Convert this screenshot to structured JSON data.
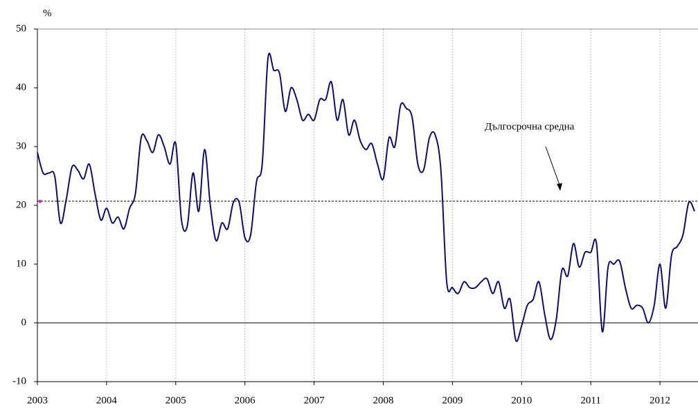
{
  "chart_data": {
    "type": "line",
    "y_unit_label": "%",
    "annotation": "Дългосрочна средна",
    "long_term_average": 20.7,
    "xlim": [
      2003,
      2012.55
    ],
    "xticks": [
      2003,
      2004,
      2005,
      2006,
      2007,
      2008,
      2009,
      2010,
      2011,
      2012
    ],
    "ylim": [
      -10,
      50
    ],
    "yticks": [
      -10,
      0,
      10,
      20,
      30,
      40,
      50
    ],
    "grid": true,
    "x": [
      2003,
      2003.083,
      2003.167,
      2003.25,
      2003.333,
      2003.417,
      2003.5,
      2003.583,
      2003.667,
      2003.75,
      2003.833,
      2003.917,
      2004,
      2004.083,
      2004.167,
      2004.25,
      2004.333,
      2004.417,
      2004.5,
      2004.583,
      2004.667,
      2004.75,
      2004.833,
      2004.917,
      2005,
      2005.083,
      2005.167,
      2005.25,
      2005.333,
      2005.417,
      2005.5,
      2005.583,
      2005.667,
      2005.75,
      2005.833,
      2005.917,
      2006,
      2006.083,
      2006.167,
      2006.25,
      2006.333,
      2006.417,
      2006.5,
      2006.583,
      2006.667,
      2006.75,
      2006.833,
      2006.917,
      2007,
      2007.083,
      2007.167,
      2007.25,
      2007.333,
      2007.417,
      2007.5,
      2007.583,
      2007.667,
      2007.75,
      2007.833,
      2007.917,
      2008,
      2008.083,
      2008.167,
      2008.25,
      2008.333,
      2008.417,
      2008.5,
      2008.583,
      2008.667,
      2008.75,
      2008.833,
      2008.917,
      2009,
      2009.083,
      2009.167,
      2009.25,
      2009.333,
      2009.417,
      2009.5,
      2009.583,
      2009.667,
      2009.75,
      2009.833,
      2009.917,
      2010,
      2010.083,
      2010.167,
      2010.25,
      2010.333,
      2010.417,
      2010.5,
      2010.583,
      2010.667,
      2010.75,
      2010.833,
      2010.917,
      2011,
      2011.083,
      2011.167,
      2011.25,
      2011.333,
      2011.417,
      2011.5,
      2011.583,
      2011.667,
      2011.75,
      2011.833,
      2011.917,
      2012,
      2012.083,
      2012.167,
      2012.25,
      2012.333,
      2012.417,
      2012.5
    ],
    "series": [
      {
        "color": "#0c0c6e",
        "values": [
          29,
          25.5,
          25.5,
          25,
          17,
          21,
          26.5,
          26,
          24.5,
          27,
          22,
          17.5,
          19.5,
          17,
          18,
          16,
          19.5,
          22,
          31.5,
          31,
          29,
          32,
          30,
          27,
          30.5,
          17.5,
          16.5,
          25.5,
          19,
          29.5,
          20,
          14,
          17,
          16,
          20.5,
          20.5,
          14.5,
          15,
          24,
          27,
          45,
          43,
          42.5,
          36,
          40,
          38,
          34.5,
          35.5,
          34.5,
          38,
          38,
          41,
          34.5,
          38,
          32,
          34.5,
          31,
          29.5,
          30.5,
          27,
          24.5,
          31.5,
          30,
          37,
          36.5,
          35,
          27,
          26,
          31.5,
          32,
          26,
          7,
          6,
          5,
          7,
          6,
          6,
          7,
          7.5,
          5,
          7,
          2.5,
          4,
          -3,
          -0.5,
          3,
          4,
          7,
          1.5,
          -2.8,
          0.5,
          9,
          8,
          13.5,
          9.5,
          12,
          12,
          13.5,
          -1.5,
          9.5,
          10,
          10.5,
          6,
          2.5,
          3,
          2.5,
          0,
          3,
          10,
          2.5,
          11.5,
          13,
          15,
          20.5,
          19
        ]
      }
    ]
  }
}
